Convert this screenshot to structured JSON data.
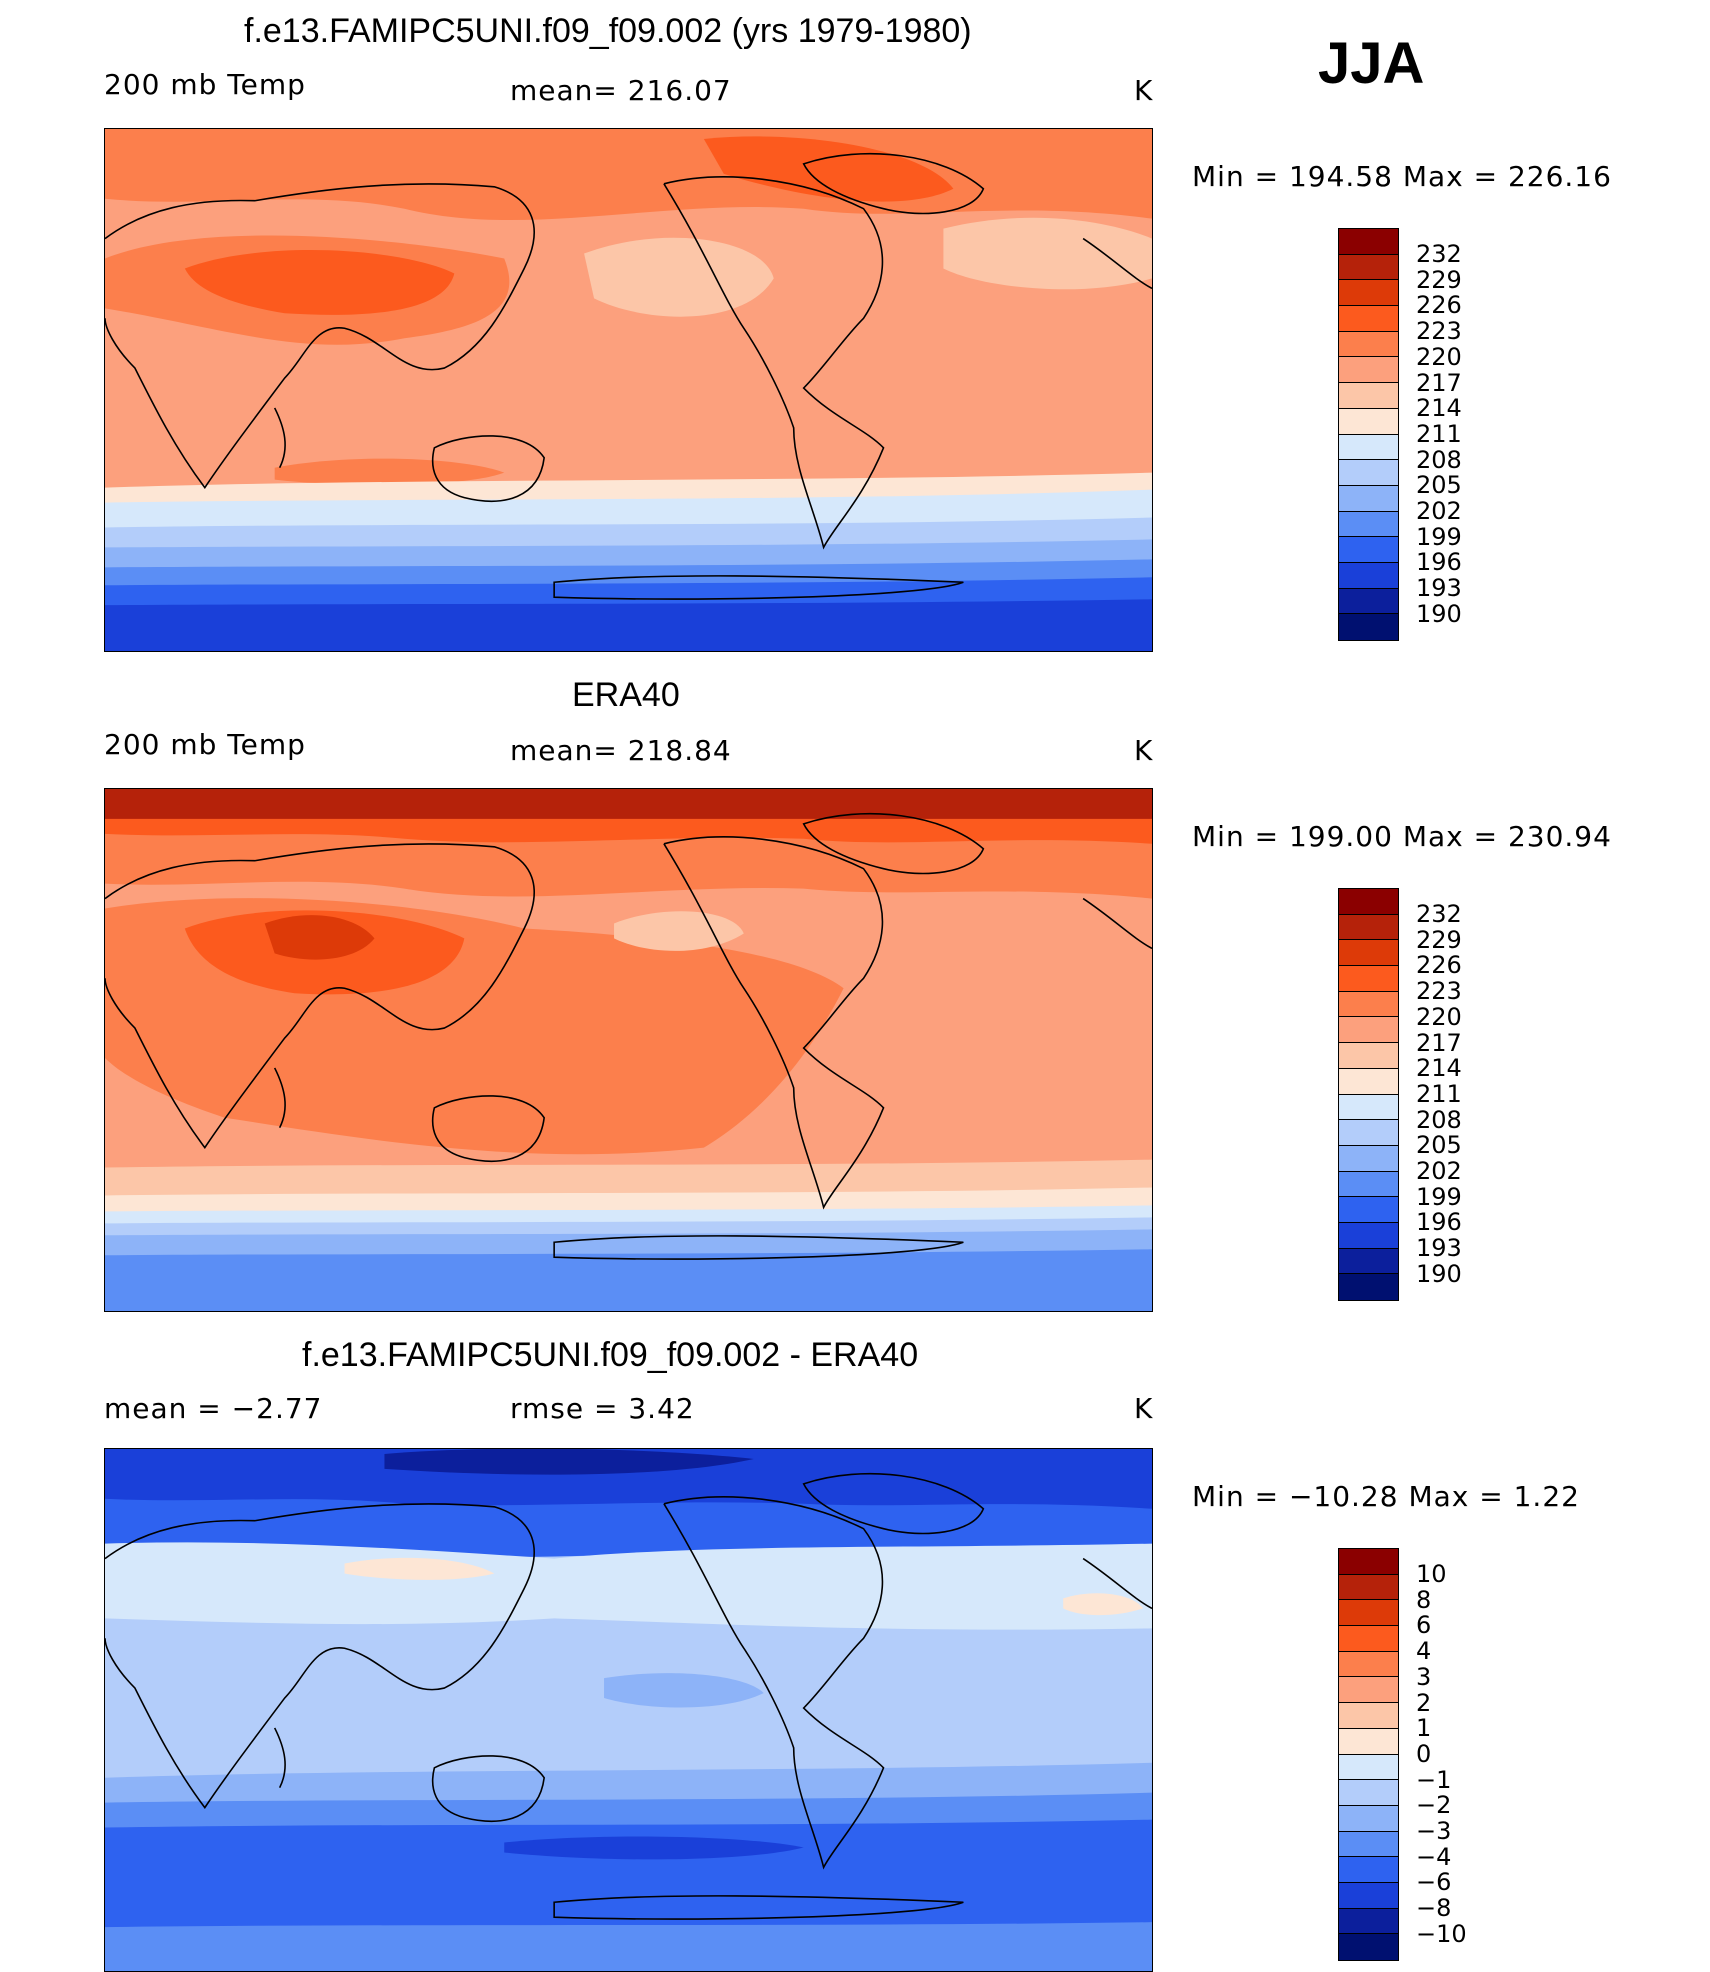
{
  "season": "JJA",
  "units": "K",
  "panels": [
    {
      "id": "model",
      "title": "f.e13.FAMIPC5UNI.f09_f09.002 (yrs 1979-1980)",
      "left_label": "200 mb Temp",
      "center_label": "mean=  216.07",
      "right_label": "K",
      "minmax": "Min  =  194.58  Max  =  226.16",
      "levels": [
        "232",
        "229",
        "226",
        "223",
        "220",
        "217",
        "214",
        "211",
        "208",
        "205",
        "202",
        "199",
        "196",
        "193",
        "190"
      ],
      "palette": [
        "#8b0000",
        "#b5220a",
        "#dd3a08",
        "#fc5a1e",
        "#fc7f4c",
        "#fca07d",
        "#fcc6a8",
        "#fde6d5",
        "#d6e8fb",
        "#b3cdfa",
        "#8db3f8",
        "#5b8ef5",
        "#2e62f0",
        "#1a40d9",
        "#0c1f9c",
        "#001070"
      ]
    },
    {
      "id": "obs",
      "title": "ERA40",
      "left_label": "200 mb Temp",
      "center_label": "mean=  218.84",
      "right_label": "K",
      "minmax": "Min  =  199.00  Max  =  230.94",
      "levels": [
        "232",
        "229",
        "226",
        "223",
        "220",
        "217",
        "214",
        "211",
        "208",
        "205",
        "202",
        "199",
        "196",
        "193",
        "190"
      ],
      "palette": [
        "#8b0000",
        "#b5220a",
        "#dd3a08",
        "#fc5a1e",
        "#fc7f4c",
        "#fca07d",
        "#fcc6a8",
        "#fde6d5",
        "#d6e8fb",
        "#b3cdfa",
        "#8db3f8",
        "#5b8ef5",
        "#2e62f0",
        "#1a40d9",
        "#0c1f9c",
        "#001070"
      ]
    },
    {
      "id": "diff",
      "title": "f.e13.FAMIPC5UNI.f09_f09.002 - ERA40",
      "left_label": "mean  =    −2.77",
      "center_label": "rmse  =     3.42",
      "right_label": "K",
      "minmax": "Min  =  −10.28  Max  =      1.22",
      "levels": [
        "10",
        "8",
        "6",
        "4",
        "3",
        "2",
        "1",
        "0",
        "−1",
        "−2",
        "−3",
        "−4",
        "−6",
        "−8",
        "−10"
      ],
      "palette": [
        "#8b0000",
        "#b5220a",
        "#dd3a08",
        "#fc5a1e",
        "#fc7f4c",
        "#fca07d",
        "#fcc6a8",
        "#fde6d5",
        "#d6e8fb",
        "#b3cdfa",
        "#8db3f8",
        "#5b8ef5",
        "#2e62f0",
        "#1a40d9",
        "#0c1f9c",
        "#001070"
      ]
    }
  ]
}
